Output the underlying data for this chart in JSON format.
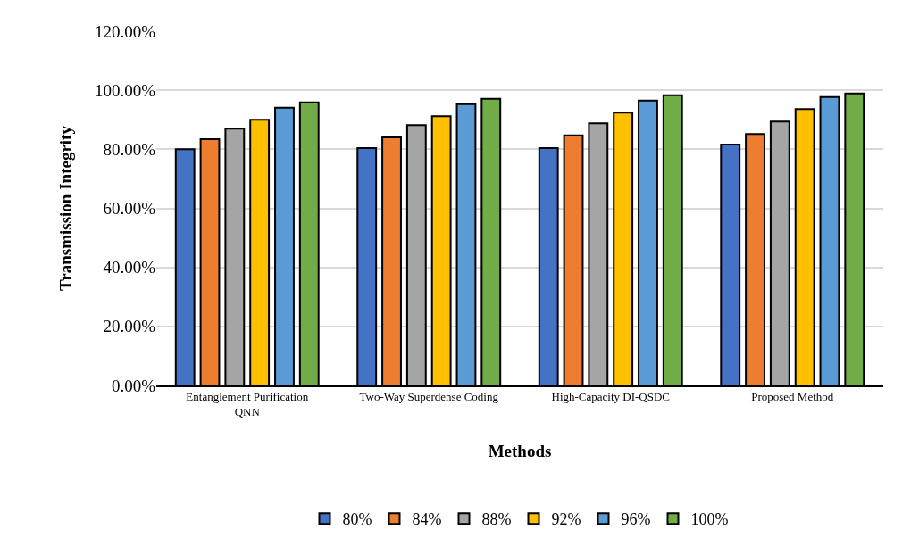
{
  "chart_data": {
    "type": "bar",
    "xlabel": "Methods",
    "ylabel": "Transmission Integrity",
    "categories": [
      "Entanglement Purification QNN",
      "Two-Way Superdense Coding",
      "High-Capacity DI-QSDC",
      "Proposed Method"
    ],
    "series": [
      {
        "name": "80%",
        "color": "#4472c4",
        "values": [
          80.0,
          80.4,
          80.4,
          81.6
        ]
      },
      {
        "name": "84%",
        "color": "#ed7d31",
        "values": [
          83.4,
          84.0,
          84.7,
          85.2
        ]
      },
      {
        "name": "88%",
        "color": "#a5a5a5",
        "values": [
          87.0,
          88.2,
          88.8,
          89.4
        ]
      },
      {
        "name": "92%",
        "color": "#ffc000",
        "values": [
          90.0,
          91.2,
          92.4,
          93.6
        ]
      },
      {
        "name": "96%",
        "color": "#5b9bd5",
        "values": [
          94.1,
          95.3,
          96.5,
          97.7
        ]
      },
      {
        "name": "100%",
        "color": "#70ad47",
        "values": [
          95.9,
          97.1,
          98.3,
          98.9
        ]
      }
    ],
    "ylim": [
      0,
      120
    ],
    "yticks": [
      {
        "value": 0,
        "label": "0.00%"
      },
      {
        "value": 20,
        "label": "20.00%"
      },
      {
        "value": 40,
        "label": "40.00%"
      },
      {
        "value": 60,
        "label": "60.00%"
      },
      {
        "value": 80,
        "label": "80.00%"
      },
      {
        "value": 100,
        "label": "100.00%"
      },
      {
        "value": 120,
        "label": "120.00%"
      }
    ],
    "grid": "y",
    "legend": "bottom"
  }
}
